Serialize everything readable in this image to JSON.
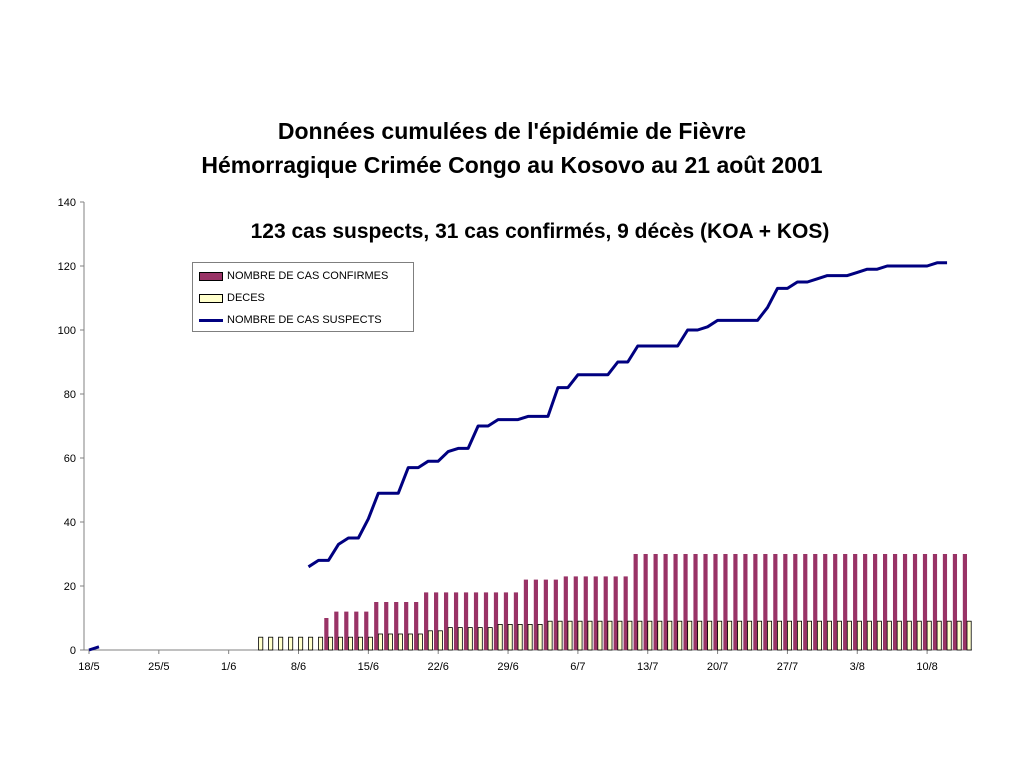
{
  "chart_data": {
    "type": "bar",
    "title_line1": "Données cumulées de l'épidémie de Fièvre",
    "title_line2": "Hémorragique Crimée Congo au Kosovo au 21 août 2001",
    "subtitle": "123 cas suspects, 31 cas confirmés, 9 décès (KOA + KOS)",
    "xlabel": "",
    "ylabel": "",
    "ylim": [
      0,
      140
    ],
    "yticks": [
      0,
      20,
      40,
      60,
      80,
      100,
      120,
      140
    ],
    "xtick_labels": [
      "18/5",
      "25/5",
      "1/6",
      "8/6",
      "15/6",
      "22/6",
      "29/6",
      "6/7",
      "13/7",
      "20/7",
      "27/7",
      "3/8",
      "10/8"
    ],
    "legend_position": "top-left",
    "colors": {
      "confirmed": "#993366",
      "deaths": "#ffffcc",
      "suspects": "#000080"
    },
    "series": [
      {
        "name": "NOMBRE DE CAS CONFIRMES",
        "kind": "bar",
        "values": [
          null,
          null,
          null,
          null,
          null,
          null,
          null,
          null,
          null,
          null,
          null,
          null,
          null,
          null,
          null,
          null,
          null,
          null,
          null,
          null,
          null,
          null,
          null,
          null,
          10,
          12,
          12,
          12,
          12,
          15,
          15,
          15,
          15,
          15,
          18,
          18,
          18,
          18,
          18,
          18,
          18,
          18,
          18,
          18,
          22,
          22,
          22,
          22,
          23,
          23,
          23,
          23,
          23,
          23,
          23,
          30,
          30,
          30,
          30,
          30,
          30,
          30,
          30,
          30,
          30,
          30,
          30,
          30,
          30,
          30,
          30,
          30,
          30,
          30,
          30,
          30,
          30,
          30,
          30,
          30,
          30,
          30,
          30,
          30,
          30,
          30,
          30,
          30,
          30
        ]
      },
      {
        "name": "DECES",
        "kind": "bar",
        "values": [
          null,
          null,
          null,
          null,
          null,
          null,
          null,
          null,
          null,
          null,
          null,
          null,
          null,
          null,
          null,
          null,
          null,
          4,
          4,
          4,
          4,
          4,
          4,
          4,
          4,
          4,
          4,
          4,
          4,
          5,
          5,
          5,
          5,
          5,
          6,
          6,
          7,
          7,
          7,
          7,
          7,
          8,
          8,
          8,
          8,
          8,
          9,
          9,
          9,
          9,
          9,
          9,
          9,
          9,
          9,
          9,
          9,
          9,
          9,
          9,
          9,
          9,
          9,
          9,
          9,
          9,
          9,
          9,
          9,
          9,
          9,
          9,
          9,
          9,
          9,
          9,
          9,
          9,
          9,
          9,
          9,
          9,
          9,
          9,
          9,
          9,
          9,
          9,
          9
        ]
      },
      {
        "name": "NOMBRE DE CAS SUSPECTS",
        "kind": "line",
        "values": [
          0,
          1,
          null,
          null,
          null,
          null,
          null,
          null,
          null,
          null,
          null,
          null,
          null,
          null,
          null,
          null,
          null,
          null,
          null,
          null,
          null,
          null,
          26,
          28,
          28,
          33,
          35,
          35,
          41,
          49,
          49,
          49,
          57,
          57,
          59,
          59,
          62,
          63,
          63,
          70,
          70,
          72,
          72,
          72,
          73,
          73,
          73,
          82,
          82,
          86,
          86,
          86,
          86,
          90,
          90,
          95,
          95,
          95,
          95,
          95,
          100,
          100,
          101,
          103,
          103,
          103,
          103,
          103,
          107,
          113,
          113,
          115,
          115,
          116,
          117,
          117,
          117,
          118,
          119,
          119,
          120,
          120,
          120,
          120,
          120,
          121,
          121
        ]
      }
    ]
  }
}
